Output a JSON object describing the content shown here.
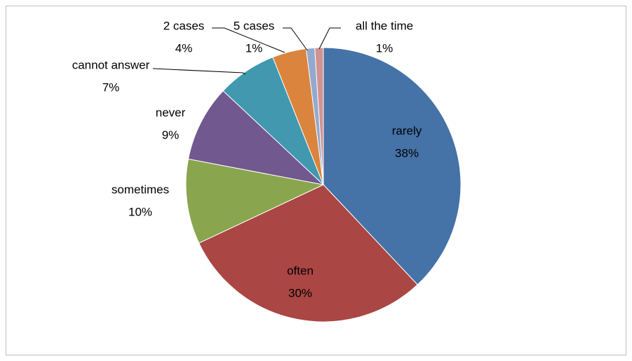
{
  "chart_data": {
    "type": "pie",
    "categories": [
      "rarely",
      "often",
      "sometimes",
      "never",
      "cannot answer",
      "2 cases",
      "5 cases",
      "all the time"
    ],
    "values": [
      38,
      30,
      10,
      9,
      7,
      4,
      1,
      1
    ],
    "value_labels": [
      "38%",
      "30%",
      "10%",
      "9%",
      "7%",
      "4%",
      "1%",
      "1%"
    ],
    "colors": [
      "#4572A7",
      "#AA4643",
      "#89A54E",
      "#71588F",
      "#4198AF",
      "#DB843D",
      "#93A9CF",
      "#D19392"
    ]
  }
}
